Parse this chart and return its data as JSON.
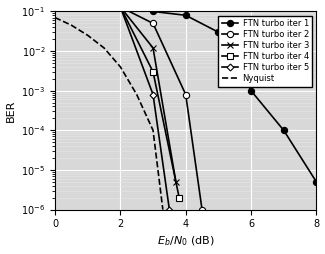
{
  "title": "",
  "xlabel": "$E_b/N_0$ (dB)",
  "ylabel": "BER",
  "xlim": [
    0,
    8
  ],
  "ylim_log": [
    -6,
    -1
  ],
  "xticks": [
    0,
    2,
    4,
    6,
    8
  ],
  "series": [
    {
      "label": "FTN turbo iter 1",
      "x": [
        0,
        2,
        3,
        4,
        5,
        6,
        7,
        8
      ],
      "y": [
        0.14,
        0.13,
        0.1,
        0.08,
        0.03,
        0.001,
        0.0001,
        5e-06
      ],
      "marker": "o",
      "markerfacecolor": "black",
      "markeredgecolor": "black",
      "color": "black",
      "linestyle": "-",
      "markersize": 4.5,
      "linewidth": 1.2
    },
    {
      "label": "FTN turbo iter 2",
      "x": [
        0,
        2,
        3,
        4,
        4.5
      ],
      "y": [
        0.14,
        0.13,
        0.05,
        0.0008,
        1e-06
      ],
      "marker": "o",
      "markerfacecolor": "white",
      "markeredgecolor": "black",
      "color": "black",
      "linestyle": "-",
      "markersize": 4.5,
      "linewidth": 1.2
    },
    {
      "label": "FTN turbo iter 3",
      "x": [
        0,
        2,
        3,
        3.7
      ],
      "y": [
        0.14,
        0.13,
        0.012,
        5e-06
      ],
      "marker": "x",
      "markerfacecolor": "black",
      "markeredgecolor": "black",
      "color": "black",
      "linestyle": "-",
      "markersize": 5,
      "linewidth": 1.2
    },
    {
      "label": "FTN turbo iter 4",
      "x": [
        0,
        2,
        3,
        3.8
      ],
      "y": [
        0.14,
        0.13,
        0.003,
        2e-06
      ],
      "marker": "s",
      "markerfacecolor": "white",
      "markeredgecolor": "black",
      "color": "black",
      "linestyle": "-",
      "markersize": 4,
      "linewidth": 1.2
    },
    {
      "label": "FTN turbo iter 5",
      "x": [
        0,
        2,
        3,
        3.5
      ],
      "y": [
        0.14,
        0.13,
        0.0008,
        1e-06
      ],
      "marker": "D",
      "markerfacecolor": "white",
      "markeredgecolor": "black",
      "color": "black",
      "linestyle": "-",
      "markersize": 3.5,
      "linewidth": 1.2
    },
    {
      "label": "Nyquist",
      "x": [
        0,
        0.5,
        1,
        1.5,
        2,
        2.5,
        3,
        3.3
      ],
      "y": [
        0.07,
        0.045,
        0.025,
        0.012,
        0.004,
        0.0008,
        0.0001,
        1e-06
      ],
      "marker": "None",
      "markerfacecolor": "black",
      "markeredgecolor": "black",
      "color": "black",
      "linestyle": "--",
      "markersize": 0,
      "linewidth": 1.2
    }
  ],
  "legend_loc": "upper right",
  "background_color": "#d8d8d8",
  "grid_color_major": "#ffffff",
  "grid_color_minor": "#e8e8e8"
}
